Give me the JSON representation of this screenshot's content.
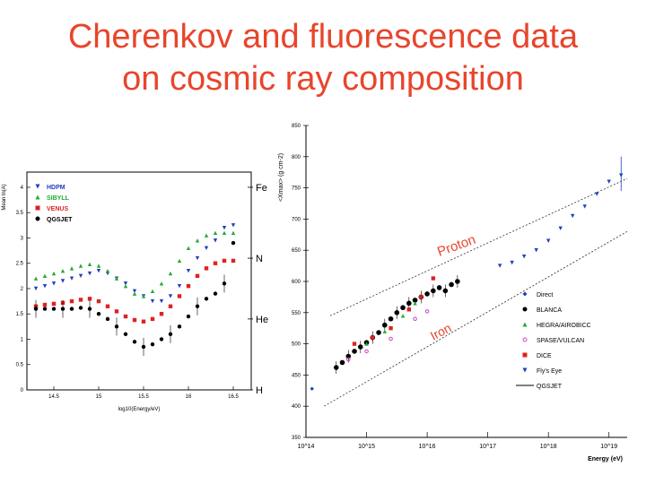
{
  "slide": {
    "title_line1": "Cherenkov and fluorescence data",
    "title_line2": "on cosmic ray composition"
  },
  "colors": {
    "title": "#e8452c",
    "blue": "#1f3fbf",
    "green": "#22aa33",
    "red": "#dd2222",
    "black": "#000000",
    "magenta": "#cc44cc"
  },
  "chart_data": [
    {
      "type": "scatter",
      "ylabel": "Mean ln(A)",
      "xlabel": "log10(Energy/eV)",
      "xlim": [
        14.2,
        16.7
      ],
      "ylim": [
        0,
        4.3
      ],
      "xticks": [
        14.5,
        15,
        15.5,
        16,
        16.5
      ],
      "yticks": [
        0,
        0.5,
        1,
        1.5,
        2,
        2.5,
        3,
        3.5,
        4
      ],
      "right_labels": [
        {
          "label": "Fe",
          "y": 4.0
        },
        {
          "label": "N",
          "y": 2.6
        },
        {
          "label": "He",
          "y": 1.4
        },
        {
          "label": "H",
          "y": 0
        }
      ],
      "legend_position": "top-left",
      "series": [
        {
          "name": "HDPM",
          "color": "#1f3fbf",
          "marker": "triangle-down",
          "x": [
            14.3,
            14.4,
            14.5,
            14.6,
            14.7,
            14.8,
            14.9,
            15.0,
            15.1,
            15.2,
            15.3,
            15.4,
            15.5,
            15.6,
            15.7,
            15.8,
            15.9,
            16.0,
            16.1,
            16.2,
            16.3,
            16.4,
            16.5
          ],
          "y": [
            2.0,
            2.05,
            2.1,
            2.15,
            2.2,
            2.25,
            2.3,
            2.35,
            2.3,
            2.2,
            2.1,
            1.95,
            1.85,
            1.75,
            1.75,
            1.85,
            2.05,
            2.35,
            2.6,
            2.8,
            2.95,
            3.2,
            3.25
          ]
        },
        {
          "name": "SIBYLL",
          "color": "#22aa33",
          "marker": "triangle-up",
          "x": [
            14.3,
            14.4,
            14.5,
            14.6,
            14.7,
            14.8,
            14.9,
            15.0,
            15.1,
            15.2,
            15.3,
            15.4,
            15.5,
            15.6,
            15.7,
            15.8,
            15.9,
            16.0,
            16.1,
            16.2,
            16.3,
            16.4,
            16.5
          ],
          "y": [
            2.2,
            2.25,
            2.3,
            2.35,
            2.4,
            2.45,
            2.48,
            2.45,
            2.35,
            2.2,
            2.05,
            1.9,
            1.85,
            1.95,
            2.1,
            2.3,
            2.55,
            2.8,
            2.95,
            3.05,
            3.1,
            3.1,
            3.1
          ]
        },
        {
          "name": "VENUS",
          "color": "#dd2222",
          "marker": "square",
          "x": [
            14.3,
            14.4,
            14.5,
            14.6,
            14.7,
            14.8,
            14.9,
            15.0,
            15.1,
            15.2,
            15.3,
            15.4,
            15.5,
            15.6,
            15.7,
            15.8,
            15.9,
            16.0,
            16.1,
            16.2,
            16.3,
            16.4,
            16.5
          ],
          "y": [
            1.65,
            1.68,
            1.7,
            1.72,
            1.75,
            1.78,
            1.8,
            1.75,
            1.65,
            1.55,
            1.45,
            1.38,
            1.35,
            1.4,
            1.5,
            1.65,
            1.85,
            2.05,
            2.25,
            2.4,
            2.5,
            2.55,
            2.55
          ]
        },
        {
          "name": "QGSJET",
          "color": "#000000",
          "marker": "circle",
          "x": [
            14.3,
            14.4,
            14.5,
            14.6,
            14.7,
            14.8,
            14.9,
            15.0,
            15.1,
            15.2,
            15.3,
            15.4,
            15.5,
            15.6,
            15.7,
            15.8,
            15.9,
            16.0,
            16.1,
            16.2,
            16.3,
            16.4,
            16.5
          ],
          "y": [
            1.6,
            1.6,
            1.6,
            1.6,
            1.6,
            1.62,
            1.6,
            1.5,
            1.4,
            1.25,
            1.1,
            0.95,
            0.85,
            0.9,
            1.0,
            1.1,
            1.25,
            1.45,
            1.65,
            1.8,
            1.9,
            2.1,
            2.9
          ]
        }
      ]
    },
    {
      "type": "scatter",
      "ylabel": "<Xmax> (g cm-2)",
      "xlabel": "Energy (eV)",
      "x_log": true,
      "xlim": [
        14,
        19.3
      ],
      "ylim": [
        350,
        850
      ],
      "yticks": [
        350,
        400,
        450,
        500,
        550,
        600,
        650,
        700,
        750,
        800,
        850
      ],
      "xticks": [
        14,
        15,
        16,
        17,
        18,
        19
      ],
      "xtick_labels": [
        "10^14",
        "10^15",
        "10^16",
        "10^17",
        "10^18",
        "10^19"
      ],
      "curve_labels": [
        "Proton",
        "Iron"
      ],
      "legend_position": "bottom-right",
      "proton_curve": {
        "x": [
          14.4,
          19.3
        ],
        "y": [
          545,
          765
        ]
      },
      "iron_curve": {
        "x": [
          14.3,
          19.3
        ],
        "y": [
          400,
          680
        ]
      },
      "series": [
        {
          "name": "Direct",
          "color": "#1f3fbf",
          "marker": "diamond-small",
          "x": [
            14.1
          ],
          "y": [
            428
          ]
        },
        {
          "name": "BLANCA",
          "color": "#000000",
          "marker": "circle",
          "x": [
            14.5,
            14.6,
            14.7,
            14.8,
            14.9,
            15.0,
            15.1,
            15.2,
            15.3,
            15.4,
            15.5,
            15.6,
            15.7,
            15.8,
            15.9,
            16.0,
            16.1,
            16.2,
            16.3,
            16.4,
            16.5
          ],
          "y": [
            462,
            470,
            480,
            488,
            495,
            502,
            510,
            518,
            530,
            540,
            550,
            558,
            565,
            570,
            575,
            580,
            585,
            590,
            585,
            595,
            600
          ]
        },
        {
          "name": "HEGRA/AIROBICC",
          "color": "#22aa33",
          "marker": "triangle-up",
          "x": [
            15.0,
            15.3,
            15.6,
            15.8
          ],
          "y": [
            500,
            520,
            545,
            565
          ]
        },
        {
          "name": "SPASE/VULCAN",
          "color": "#cc44cc",
          "marker": "circle-open",
          "x": [
            14.7,
            15.0,
            15.4,
            15.8,
            16.0
          ],
          "y": [
            475,
            488,
            508,
            540,
            552
          ]
        },
        {
          "name": "DICE",
          "color": "#dd2222",
          "marker": "square",
          "x": [
            14.8,
            15.1,
            15.4,
            15.7,
            15.9,
            16.1
          ],
          "y": [
            500,
            510,
            525,
            555,
            575,
            605
          ]
        },
        {
          "name": "Fly's Eye",
          "color": "#1f3fbf",
          "marker": "triangle-down",
          "x": [
            17.2,
            17.4,
            17.6,
            17.8,
            18.0,
            18.2,
            18.4,
            18.6,
            18.8,
            19.0,
            19.2
          ],
          "y": [
            625,
            630,
            640,
            650,
            665,
            685,
            705,
            720,
            740,
            760,
            770
          ]
        },
        {
          "name": "QGSJET",
          "color": "#000000",
          "marker": "line",
          "x": [],
          "y": []
        }
      ]
    }
  ]
}
